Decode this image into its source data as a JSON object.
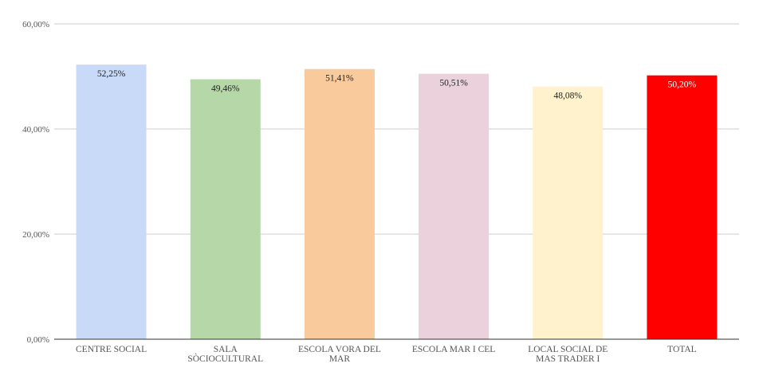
{
  "chart_data": {
    "type": "bar",
    "title": "",
    "xlabel": "",
    "ylabel": "",
    "ylim": [
      0,
      60
    ],
    "grid": true,
    "legend": "none",
    "y_ticks": [
      "0,00%",
      "20,00%",
      "40,00%",
      "60,00%"
    ],
    "y_tick_values": [
      0,
      20,
      40,
      60
    ],
    "categories": [
      [
        "CENTRE SOCIAL"
      ],
      [
        "SALA",
        "SÒCIOCULTURAL"
      ],
      [
        "ESCOLA VORA DEL",
        "MAR"
      ],
      [
        "ESCOLA MAR I CEL"
      ],
      [
        "LOCAL SOCIAL DE",
        "MAS TRADER I"
      ],
      [
        "TOTAL"
      ]
    ],
    "values": [
      52.25,
      49.46,
      51.41,
      50.51,
      48.08,
      50.2
    ],
    "value_labels": [
      "52,25%",
      "49,46%",
      "51,41%",
      "50,51%",
      "48,08%",
      "50,20%"
    ],
    "colors": [
      "#c9daf8",
      "#b6d7a8",
      "#f9cb9c",
      "#ead1dc",
      "#fff2cc",
      "#ff0000"
    ]
  }
}
